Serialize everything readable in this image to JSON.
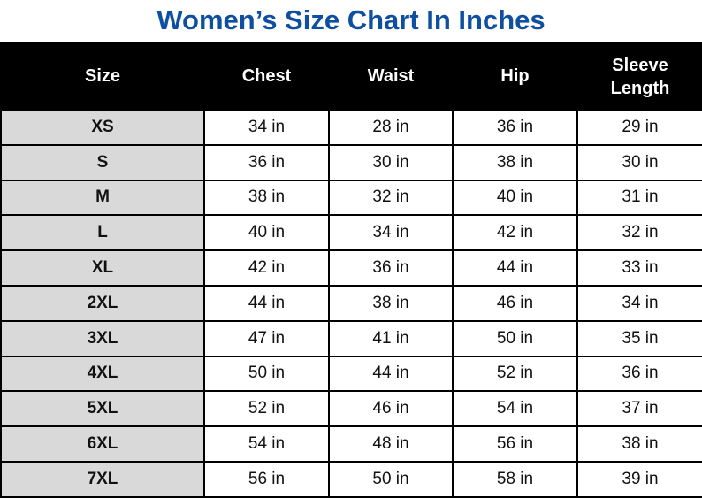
{
  "title": "Women’s Size Chart In Inches",
  "table": {
    "headers": [
      "Size",
      "Chest",
      "Waist",
      "Hip",
      "Sleeve Length"
    ],
    "rows": [
      [
        "XS",
        "34 in",
        "28 in",
        "36 in",
        "29 in"
      ],
      [
        "S",
        "36 in",
        "30 in",
        "38 in",
        "30 in"
      ],
      [
        "M",
        "38 in",
        "32 in",
        "40 in",
        "31 in"
      ],
      [
        "L",
        "40 in",
        "34 in",
        "42 in",
        "32 in"
      ],
      [
        "XL",
        "42 in",
        "36 in",
        "44 in",
        "33 in"
      ],
      [
        "2XL",
        "44 in",
        "38 in",
        "46 in",
        "34 in"
      ],
      [
        "3XL",
        "47 in",
        "41 in",
        "50 in",
        "35 in"
      ],
      [
        "4XL",
        "50 in",
        "44 in",
        "52 in",
        "36 in"
      ],
      [
        "5XL",
        "52 in",
        "46 in",
        "54 in",
        "37 in"
      ],
      [
        "6XL",
        "54 in",
        "48 in",
        "56 in",
        "38 in"
      ],
      [
        "7XL",
        "56 in",
        "50 in",
        "58 in",
        "39 in"
      ]
    ]
  }
}
